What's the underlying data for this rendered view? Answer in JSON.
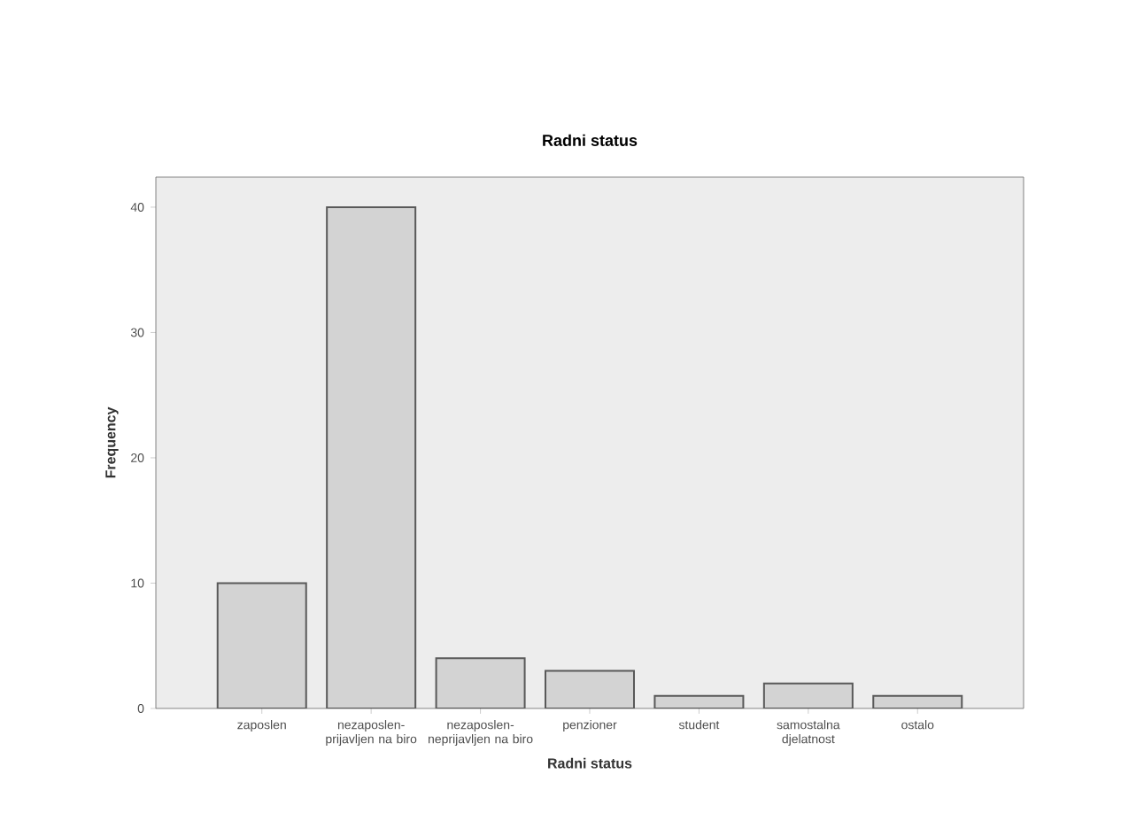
{
  "chart_data": {
    "type": "bar",
    "title": "Radni status",
    "xlabel": "Radni status",
    "ylabel": "Frequency",
    "categories": [
      "zaposlen",
      "nezaposlen-prijavljen na biro",
      "nezaposlen-neprijavljen na biro",
      "penzioner",
      "student",
      "samostalna djelatnost",
      "ostalo"
    ],
    "values": [
      10,
      40,
      4,
      3,
      1,
      2,
      1
    ],
    "color": "#d3d3d3",
    "ylim": [
      0,
      42.4
    ],
    "yticks": [
      0,
      10,
      20,
      30,
      40
    ]
  }
}
